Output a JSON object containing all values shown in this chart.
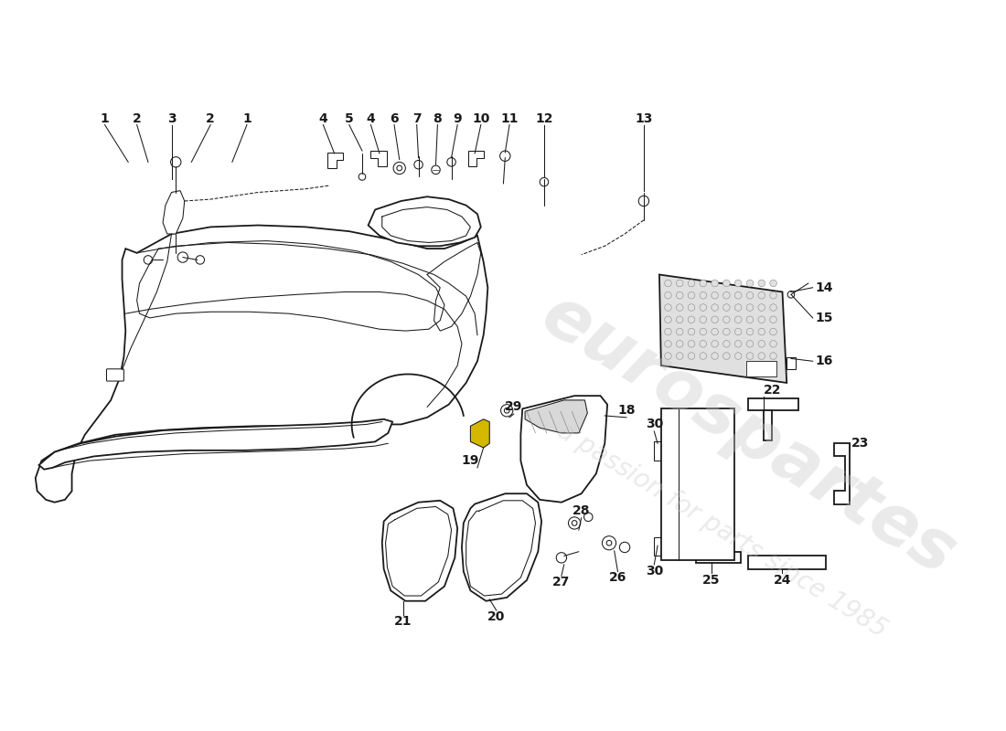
{
  "background_color": "#ffffff",
  "line_color": "#1a1a1a",
  "lw_main": 1.3,
  "lw_thin": 0.75,
  "label_fontsize": 10,
  "watermark_text1": "eurospartes",
  "watermark_text2": "a passion for parts since 1985",
  "watermark_color": "#c8c8c8",
  "highlight_color": "#d4b800"
}
